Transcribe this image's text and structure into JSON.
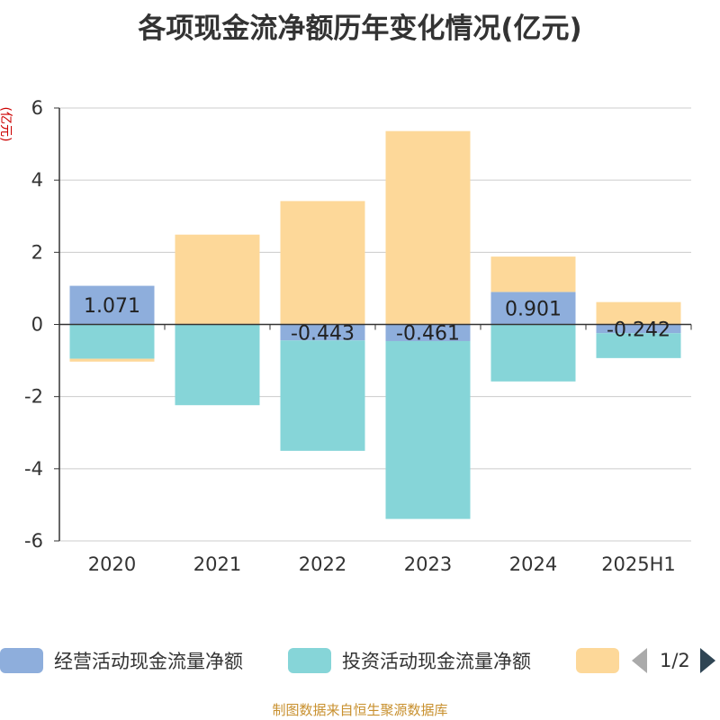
{
  "title": "各项现金流净额历年变化情况(亿元)",
  "y_unit": "(亿元)",
  "source": "制图数据来自恒生聚源数据库",
  "legend": {
    "page": "1/2"
  },
  "chart_data": {
    "type": "bar",
    "stacked": true,
    "categories": [
      "2020",
      "2021",
      "2022",
      "2023",
      "2024",
      "2025H1"
    ],
    "ylim": [
      -6,
      6
    ],
    "yticks": [
      6,
      4,
      2,
      0,
      -2,
      -4,
      -6
    ],
    "grid": true,
    "legend_position": "bottom",
    "series": [
      {
        "name": "经营活动现金流量净额",
        "color": "#8eaedc",
        "values": [
          1.071,
          -0.008,
          -0.443,
          -0.461,
          0.901,
          -0.242
        ],
        "labels": [
          "1.071",
          "",
          "-0.443",
          "-0.461",
          "0.901",
          "-0.242"
        ]
      },
      {
        "name": "投资活动现金流量净额",
        "color": "#86d5d8",
        "values": [
          -0.95,
          -2.23,
          -3.06,
          -4.93,
          -1.58,
          -0.69
        ],
        "labels": [
          "",
          "",
          "",
          "",
          "",
          ""
        ]
      },
      {
        "name": "",
        "color": "#fdd899",
        "values": [
          -0.08,
          2.49,
          3.42,
          5.36,
          0.98,
          0.62
        ],
        "labels": [
          "",
          "",
          "",
          "",
          "",
          ""
        ]
      }
    ]
  }
}
